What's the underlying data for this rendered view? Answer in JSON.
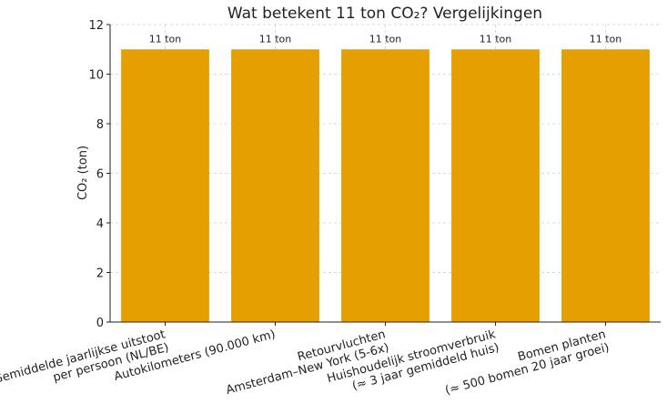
{
  "chart_data": {
    "type": "bar",
    "title": "Wat betekent 11 ton CO₂? Vergelijkingen",
    "ylabel": "CO₂ (ton)",
    "xlabel": "",
    "ylim": [
      0,
      12
    ],
    "yticks": [
      0,
      2,
      4,
      6,
      8,
      10,
      12
    ],
    "grid": true,
    "categories": [
      [
        "Gemiddelde jaarlijkse uitstoot",
        "per persoon (NL/BE)"
      ],
      [
        "Autokilometers (90.000 km)"
      ],
      [
        "Retourvluchten",
        "Amsterdam–New York (5-6x)"
      ],
      [
        "Huishoudelijk stroomverbruik",
        "(≈ 3 jaar gemiddeld huis)"
      ],
      [
        "Bomen planten",
        "(≈ 500 bomen 20 jaar groei)"
      ]
    ],
    "values": [
      11,
      11,
      11,
      11,
      11
    ],
    "data_labels": [
      "11 ton",
      "11 ton",
      "11 ton",
      "11 ton",
      "11 ton"
    ],
    "bar_color": "#E69F00"
  }
}
